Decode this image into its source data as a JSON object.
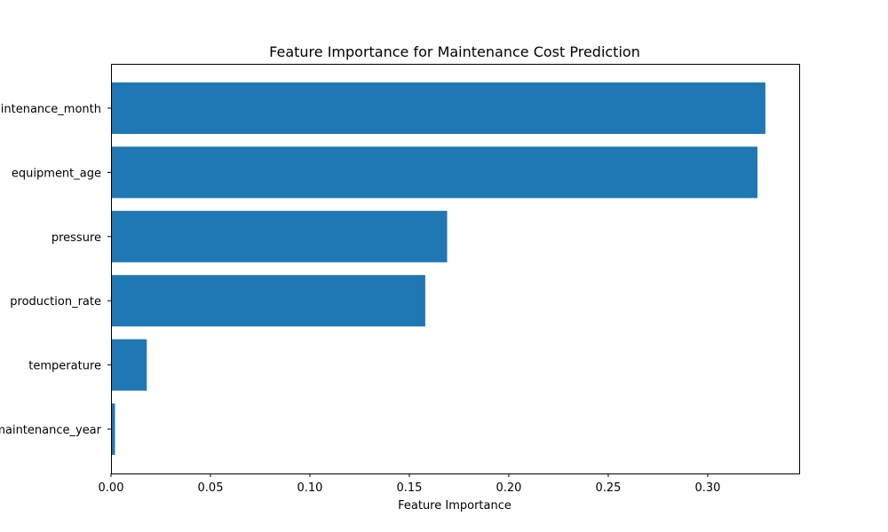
{
  "chart_data": {
    "type": "bar",
    "orientation": "horizontal",
    "title": "Feature Importance for Maintenance Cost Prediction",
    "xlabel": "Feature Importance",
    "ylabel": "",
    "categories": [
      "maintenance_month",
      "equipment_age",
      "pressure",
      "production_rate",
      "temperature",
      "maintenance_year"
    ],
    "values": [
      0.329,
      0.325,
      0.169,
      0.158,
      0.018,
      0.002
    ],
    "xlim": [
      0,
      0.346
    ],
    "x_ticks": [
      0.0,
      0.05,
      0.1,
      0.15,
      0.2,
      0.25,
      0.3
    ],
    "x_tick_labels": [
      "0.00",
      "0.05",
      "0.10",
      "0.15",
      "0.20",
      "0.25",
      "0.30"
    ],
    "bar_color": "#1f77b4",
    "grid": false,
    "legend": "none"
  }
}
